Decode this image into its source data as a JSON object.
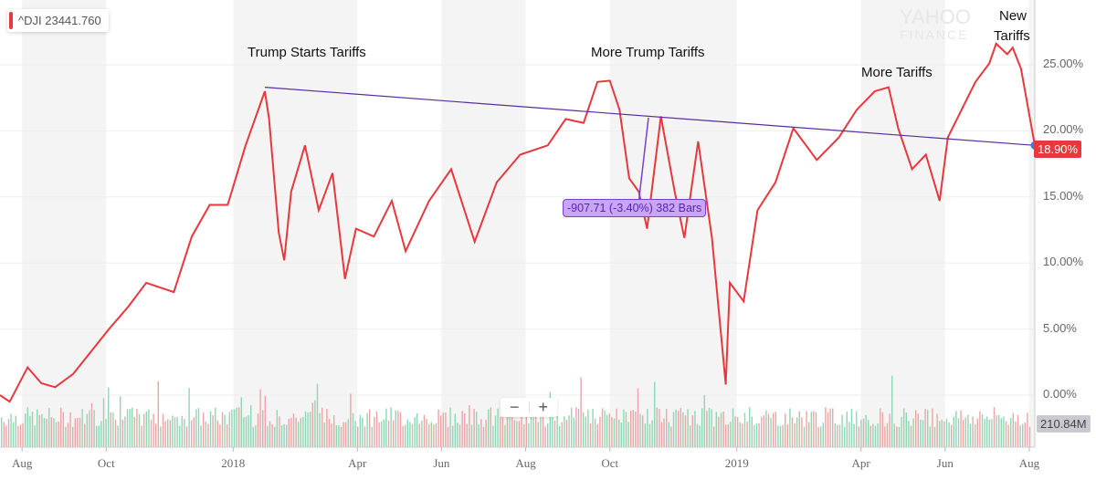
{
  "legend": {
    "symbol": "^DJI",
    "value": "23441.760",
    "color": "#e8383d"
  },
  "watermark": {
    "line1": "YAHOO",
    "line2": "FINANCE"
  },
  "annotations": [
    {
      "text": "Trump Starts Tariffs"
    },
    {
      "text": "More Trump Tariffs"
    },
    {
      "text": "More Tariffs"
    },
    {
      "text": "New",
      "text2": "Tariffs"
    }
  ],
  "measure_label": "-907.71 (-3.40%) 382 Bars",
  "current_value_label": "18.90%",
  "volume_label": "210.84M",
  "zoom_controls": {
    "minus": "−",
    "plus": "+"
  },
  "chart_data": {
    "type": "line",
    "x_range": [
      "2017-07-16",
      "2019-08-05"
    ],
    "ylim": [
      -1.5,
      28
    ],
    "y_ticks": [
      "0.00%",
      "5.00%",
      "10.00%",
      "15.00%",
      "20.00%",
      "25.00%"
    ],
    "y_tick_values": [
      0,
      5,
      10,
      15,
      20,
      25
    ],
    "x_ticks": [
      {
        "label": "Aug",
        "date": "2017-08-01"
      },
      {
        "label": "Oct",
        "date": "2017-10-01"
      },
      {
        "label": "2018",
        "date": "2018-01-01"
      },
      {
        "label": "Apr",
        "date": "2018-04-01"
      },
      {
        "label": "Jun",
        "date": "2018-06-01"
      },
      {
        "label": "Aug",
        "date": "2018-08-01"
      },
      {
        "label": "Oct",
        "date": "2018-10-01"
      },
      {
        "label": "2019",
        "date": "2019-01-01"
      },
      {
        "label": "Apr",
        "date": "2019-04-01"
      },
      {
        "label": "Jun",
        "date": "2019-06-01"
      },
      {
        "label": "Aug",
        "date": "2019-08-01"
      }
    ],
    "shaded_periods": [
      [
        "2017-08-01",
        "2017-10-01"
      ],
      [
        "2018-01-01",
        "2018-04-01"
      ],
      [
        "2018-06-01",
        "2018-08-01"
      ],
      [
        "2018-10-01",
        "2019-01-01"
      ],
      [
        "2019-04-01",
        "2019-06-01"
      ],
      [
        "2019-08-01",
        "2019-08-05"
      ]
    ],
    "series_color": "#e8383d",
    "x": [
      "2017-07-16",
      "2017-07-23",
      "2017-08-05",
      "2017-08-15",
      "2017-08-25",
      "2017-09-07",
      "2017-09-20",
      "2017-10-03",
      "2017-10-17",
      "2017-10-30",
      "2017-11-19",
      "2017-12-02",
      "2017-12-15",
      "2017-12-28",
      "2018-01-10",
      "2018-01-24",
      "2018-01-27",
      "2018-02-03",
      "2018-02-07",
      "2018-02-12",
      "2018-02-22",
      "2018-03-04",
      "2018-03-14",
      "2018-03-23",
      "2018-03-31",
      "2018-04-13",
      "2018-04-26",
      "2018-05-06",
      "2018-05-23",
      "2018-06-08",
      "2018-06-25",
      "2018-07-11",
      "2018-07-28",
      "2018-08-17",
      "2018-08-30",
      "2018-09-12",
      "2018-09-22",
      "2018-10-01",
      "2018-10-08",
      "2018-10-15",
      "2018-10-22",
      "2018-10-28",
      "2018-11-07",
      "2018-11-17",
      "2018-11-24",
      "2018-12-04",
      "2018-12-14",
      "2018-12-24",
      "2018-12-27",
      "2019-01-06",
      "2019-01-16",
      "2019-01-29",
      "2019-02-11",
      "2019-02-28",
      "2019-03-16",
      "2019-03-29",
      "2019-04-11",
      "2019-04-21",
      "2019-04-28",
      "2019-05-08",
      "2019-05-18",
      "2019-05-28",
      "2019-06-03",
      "2019-06-13",
      "2019-06-23",
      "2019-07-03",
      "2019-07-08",
      "2019-07-16",
      "2019-07-20",
      "2019-07-26",
      "2019-08-05"
    ],
    "y": [
      0,
      -0.5,
      2.1,
      0.9,
      0.6,
      1.6,
      3.3,
      5.0,
      6.7,
      8.5,
      7.8,
      12.0,
      14.4,
      14.4,
      18.9,
      23.0,
      20.9,
      12.3,
      10.2,
      15.4,
      18.9,
      14.0,
      16.8,
      8.8,
      12.6,
      12.0,
      14.7,
      10.9,
      14.7,
      17.1,
      11.6,
      16.1,
      18.2,
      18.9,
      20.9,
      20.6,
      23.7,
      23.8,
      21.6,
      16.4,
      15.4,
      12.6,
      21.1,
      15.4,
      11.9,
      19.2,
      11.9,
      0.8,
      8.5,
      7.1,
      14.0,
      16.1,
      20.2,
      17.8,
      19.5,
      21.6,
      23.0,
      23.3,
      20.2,
      17.1,
      18.2,
      14.7,
      19.5,
      21.6,
      23.7,
      25.1,
      26.6,
      25.8,
      26.3,
      24.7,
      18.9
    ],
    "trendline": {
      "from": {
        "date": "2018-01-24",
        "value": 23.3
      },
      "to": {
        "date": "2019-08-05",
        "value": 18.9
      },
      "color": "#5a2ca0"
    },
    "measure": {
      "from": {
        "date": "2018-10-29",
        "value": 21.0
      },
      "to": {
        "date": "2018-10-22",
        "value": 14.7
      }
    }
  }
}
